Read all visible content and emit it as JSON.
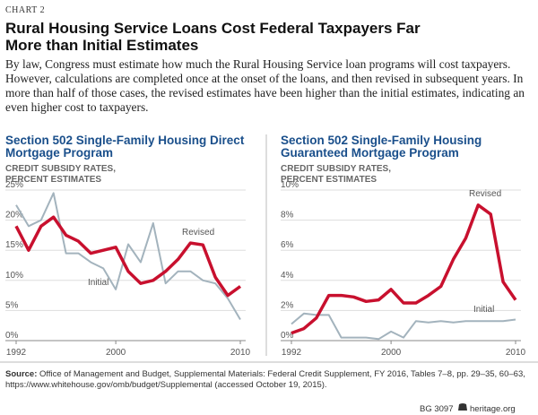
{
  "label": "CHART 2",
  "title": "Rural Housing Service Loans Cost Federal Taxpayers Far More than Initial Estimates",
  "description": "By law, Congress must estimate how much the Rural Housing Service loan programs will cost taxpayers. However, calculations are completed once at the onset of the loans, and then revised in subsequent years.  In more than half of those cases, the revised estimates have been higher than the initial estimates, indicating an even higher cost to taxpayers.",
  "source_label": "Source:",
  "source": "Office of Management and Budget, Supplemental Materials: Federal Credit Supplement, FY 2016, Tables 7–8, pp. 29–35, 60–63, https://www.whitehouse.gov/omb/budget/Supplemental (accessed October 19, 2015).",
  "footer_id": "BG 3097",
  "footer_site": "heritage.org",
  "chart_data": [
    {
      "type": "line",
      "title": "Section 502 Single-Family Housing Direct Mortgage Program",
      "ylabel": "CREDIT SUBSIDY RATES, PERCENT ESTIMATES",
      "x": [
        1992,
        1993,
        1994,
        1995,
        1996,
        1997,
        1998,
        1999,
        2000,
        2001,
        2002,
        2003,
        2004,
        2005,
        2006,
        2007,
        2008,
        2009,
        2010
      ],
      "xlim": [
        1992,
        2010
      ],
      "xticks": [
        1992,
        2000,
        2010
      ],
      "ylim": [
        0,
        25
      ],
      "yticks": [
        {
          "value": 0,
          "label": "0%"
        },
        {
          "value": 5,
          "label": "5%"
        },
        {
          "value": 10,
          "label": "10%"
        },
        {
          "value": 15,
          "label": "15%"
        },
        {
          "value": 20,
          "label": "20%"
        },
        {
          "value": 25,
          "label": "25%"
        }
      ],
      "grid": true,
      "series": [
        {
          "name": "Revised",
          "color": "#c8102e",
          "values": [
            19,
            15,
            19,
            20.5,
            17.5,
            16.5,
            14.5,
            15,
            15.5,
            11.5,
            9.5,
            10,
            11.5,
            13.5,
            16.2,
            15.9,
            10.5,
            7.5,
            9
          ]
        },
        {
          "name": "Initial",
          "color": "#a3b3bd",
          "values": [
            22.5,
            19,
            20,
            24.5,
            14.5,
            14.5,
            13,
            12,
            8.5,
            16,
            13,
            19.5,
            9.5,
            11.5,
            11.5,
            10,
            9.5,
            7,
            3.5
          ]
        }
      ]
    },
    {
      "type": "line",
      "title": "Section 502 Single-Family Housing Guaranteed Mortgage Program",
      "ylabel": "CREDIT SUBSIDY RATES, PERCENT ESTIMATES",
      "x": [
        1992,
        1993,
        1994,
        1995,
        1996,
        1997,
        1998,
        1999,
        2000,
        2001,
        2002,
        2003,
        2004,
        2005,
        2006,
        2007,
        2008,
        2009,
        2010
      ],
      "xlim": [
        1992,
        2010
      ],
      "xticks": [
        1992,
        2000,
        2010
      ],
      "ylim": [
        0,
        10
      ],
      "yticks": [
        {
          "value": 0,
          "label": "0%"
        },
        {
          "value": 2,
          "label": "2%"
        },
        {
          "value": 4,
          "label": "4%"
        },
        {
          "value": 6,
          "label": "6%"
        },
        {
          "value": 8,
          "label": "8%"
        },
        {
          "value": 10,
          "label": "10%"
        }
      ],
      "grid": true,
      "series": [
        {
          "name": "Revised",
          "color": "#c8102e",
          "values": [
            0.5,
            0.8,
            1.5,
            3,
            3,
            2.9,
            2.6,
            2.7,
            3.4,
            2.5,
            2.5,
            3,
            3.6,
            5.4,
            6.8,
            9,
            8.4,
            3.9,
            2.7
          ]
        },
        {
          "name": "Initial",
          "color": "#a3b3bd",
          "values": [
            1.1,
            1.8,
            1.7,
            1.7,
            0.2,
            0.2,
            0.2,
            0.1,
            0.6,
            0.2,
            1.3,
            1.2,
            1.3,
            1.2,
            1.3,
            1.3,
            1.3,
            1.3,
            1.4
          ]
        }
      ]
    }
  ]
}
